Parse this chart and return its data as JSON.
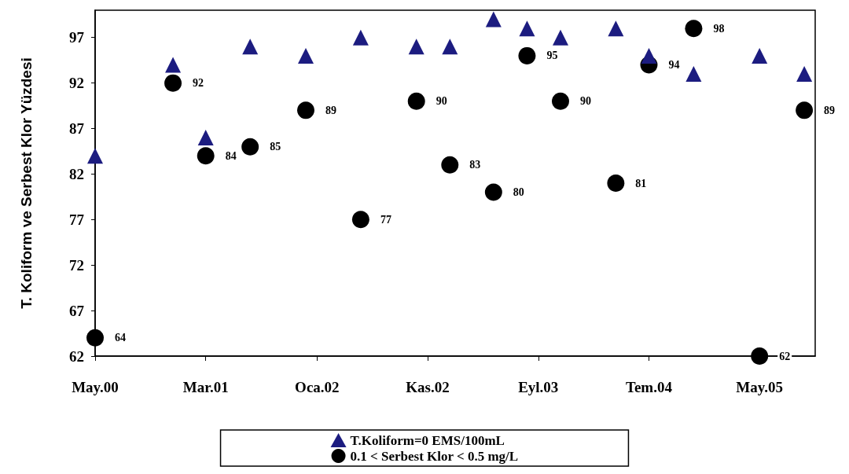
{
  "chart_data": {
    "type": "scatter",
    "ylabel": "T. Koliform ve Serbest Klor Yüzdesi",
    "xlim": [
      "2000-05",
      "2005-10"
    ],
    "xticks": [
      {
        "value": "2000-05",
        "label": "May.00"
      },
      {
        "value": "2001-03",
        "label": "Mar.01"
      },
      {
        "value": "2002-01",
        "label": "Oca.02"
      },
      {
        "value": "2002-11",
        "label": "Kas.02"
      },
      {
        "value": "2003-09",
        "label": "Eyl.03"
      },
      {
        "value": "2004-07",
        "label": "Tem.04"
      },
      {
        "value": "2005-05",
        "label": "May.05"
      }
    ],
    "ylim": [
      62,
      100
    ],
    "yticks": [
      62,
      67,
      72,
      77,
      82,
      87,
      92,
      97
    ],
    "x": [
      "2000-05",
      "2000-12",
      "2001-03",
      "2001-07",
      "2001-12",
      "2002-05",
      "2002-10",
      "2003-01",
      "2003-05",
      "2003-08",
      "2003-11",
      "2004-04",
      "2004-07",
      "2004-11",
      "2005-05",
      "2005-09"
    ],
    "series": [
      {
        "name": "T.Koliform=0 EMS/100mL",
        "color": "#1c1c80",
        "marker": "triangle",
        "values": [
          84,
          94,
          86,
          96,
          95,
          97,
          96,
          96,
          99,
          98,
          97,
          98,
          95,
          93,
          95,
          93
        ]
      },
      {
        "name": "0.1 < Serbest Klor < 0.5 mg/L",
        "color": "#000000",
        "marker": "circle",
        "values": [
          64,
          92,
          84,
          85,
          89,
          77,
          90,
          83,
          80,
          95,
          90,
          81,
          94,
          98,
          62,
          89
        ],
        "value_labels": [
          "64",
          "92",
          "84",
          "85",
          "89",
          "77",
          "90",
          "83",
          "80",
          "95",
          "90",
          "81",
          "94",
          "98",
          "62",
          "89"
        ]
      }
    ],
    "grid": false,
    "legend": "bottom"
  }
}
